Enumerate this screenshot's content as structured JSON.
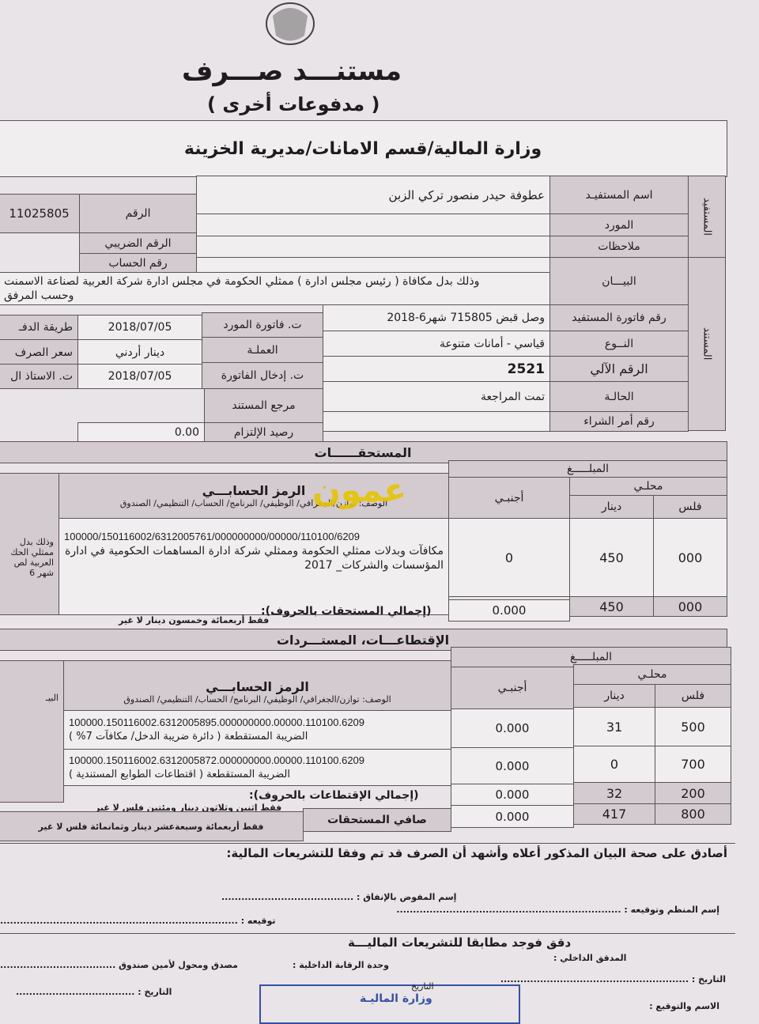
{
  "header": {
    "emblem": "emblem",
    "title": "مستنـــد صـــرف",
    "subtitle": "( مدفوعات أخرى )",
    "ministry": "وزارة المالية/قسم الامانات/مديرية الخزينة"
  },
  "sections": {
    "beneficiary": "المستفيد",
    "document": "المستند"
  },
  "fields": {
    "beneficiary_name_label": "اسم المستفيـد",
    "beneficiary_name": "عطوفة حيدر منصور تركي الزبن",
    "supplier_label": "المورد",
    "notes_label": "ملاحظات",
    "number_label": "الرقم",
    "number": "11025805",
    "tax_number_label": "الرقم الضريبي",
    "account_number_label": "رقم الحساب",
    "statement_label": "البيـــان",
    "statement_line1": "وذلك بدل مكافاة ( رئيس مجلس ادارة ) ممثلي الحكومة في مجلس ادارة شركة العربية لصناعة الاسمنت",
    "statement_line2": "وحسب المرفق",
    "beneficiary_invoice_label": "رقم فاتورة المستفيد",
    "beneficiary_invoice": "وصل قبض 715805 شهر6-2018",
    "supplier_invoice_date_label": "ت. فاتورة المورد",
    "supplier_invoice_date": "2018/07/05",
    "payment_method_label": "طريقة الدفـ",
    "type_label": "النــوع",
    "type": "قياسي - أمانات متنوعة",
    "currency_label": "العملـة",
    "currency": "دينار أردني",
    "exchange_rate_label": "سعر الصرف",
    "auto_number_label": "الرقم الآلي",
    "auto_number": "2521",
    "invoice_entry_date_label": "ت. إدخال الفاتورة",
    "invoice_entry_date": "2018/07/05",
    "ledger_date_label": "ت. الاستاذ ال",
    "status_label": "الحالـة",
    "status": "تمت المراجعة",
    "document_ref_label": "مرجع المستند",
    "purchase_order_label": "رقم أمر الشراء",
    "commitment_balance_label": "رصيد الإلتزام",
    "commitment_balance": "0.00"
  },
  "entitlements": {
    "title": "المستحقــــــات",
    "amount_label": "المبلـــــغ",
    "local_label": "محلـي",
    "fils_label": "فلس",
    "dinar_label": "دينار",
    "foreign_label": "أجنبـي",
    "account_code_label": "الرمز الحسابـــي",
    "description_label": "الوصف: توازن/الجغرافي/ الوظيفي/ البرنامج/ الحساب/ التنظيمي/ الصندوق",
    "statement_partial": "وذلك بدل ممثلي الحك العربية لص شهر 6",
    "rows": [
      {
        "code": "100000/150116002/6312005761/000000000/00000/110100/6209",
        "desc": "مكافآت وبدلات ممثلي الحكومة وممثلي شركة ادارة المساهمات الحكومية في ادارة المؤسسات والشركات_ 2017",
        "foreign": "0",
        "dinar": "450",
        "fils": "000"
      }
    ],
    "total_label": "(إجمالي المستحقات بالحروف):",
    "total_words": "فقط أربعمائة وخمسون دينار لا غير",
    "total_foreign": "0.000",
    "total_dinar": "450",
    "total_fils": "000"
  },
  "deductions": {
    "title": "الإقتطاعـــات، المستـــردات",
    "amount_label": "المبلـــــغ",
    "local_label": "محلـي",
    "fils_label": "فلس",
    "dinar_label": "دينار",
    "foreign_label": "أجنبـي",
    "account_code_label": "الرمز الحسابـــي",
    "description_label": "الوصف: توازن/الجغرافي/ الوظيفي/ البرنامج/ الحساب/ التنظيمي/ الصندوق",
    "statement_partial": "البيـ",
    "rows": [
      {
        "code": "100000.150116002.6312005895.000000000.00000.110100.6209",
        "desc": "الضريبة المستقطعة ( دائرة ضريبة الدخل/ مكافآت 7% )",
        "foreign": "0.000",
        "dinar": "31",
        "fils": "500"
      },
      {
        "code": "100000.150116002.6312005872.000000000.00000.110100.6209",
        "desc": "الضريبة المستقطعة ( اقتطاعات الطوابع المستندية )",
        "foreign": "0.000",
        "dinar": "0",
        "fils": "700"
      }
    ],
    "total_label": "(إجمالي الإقتطاعات بالحروف):",
    "total_words": "فقط إثنين وثلاثون دينار ومئتين فلس لا غير",
    "total_foreign": "0.000",
    "total_dinar": "32",
    "total_fils": "200",
    "net_label": "صافي المستحقات",
    "net_words": "فقط أربعمائة وسبعةعشر دينار وثمانمائة فلس لا غير",
    "net_foreign": "0.000",
    "net_dinar": "417",
    "net_fils": "800"
  },
  "certification": {
    "statement": "أصادق على صحة البيان المذكور أعلاه وأشهد أن الصرف قد تم وفقا للتشريعات المالية:",
    "authorized_name": "إسم المفوض بالإنفاق : ........................................",
    "organizer_name": "إسم المنظم وتوقيعه : ....................................................................",
    "signature": "توقيعه : ........................................................................",
    "audit_title": "دقق فوجد مطابقا للتشريعات الماليـــة",
    "internal_auditor": "المدقق الداخلي :",
    "internal_control": "وحدة الرقابة الداخلية :",
    "treasurer": "مصدق ومحول لأمين صندوق ...................................",
    "date1": "التاريخ : .........................................................",
    "date2": "التاريخ : ....................................",
    "date3": "التاريخ",
    "name_signature": "الاسم والتوقيع :",
    "stamp": "وزارة الماليـة"
  },
  "watermark": "عمون"
}
